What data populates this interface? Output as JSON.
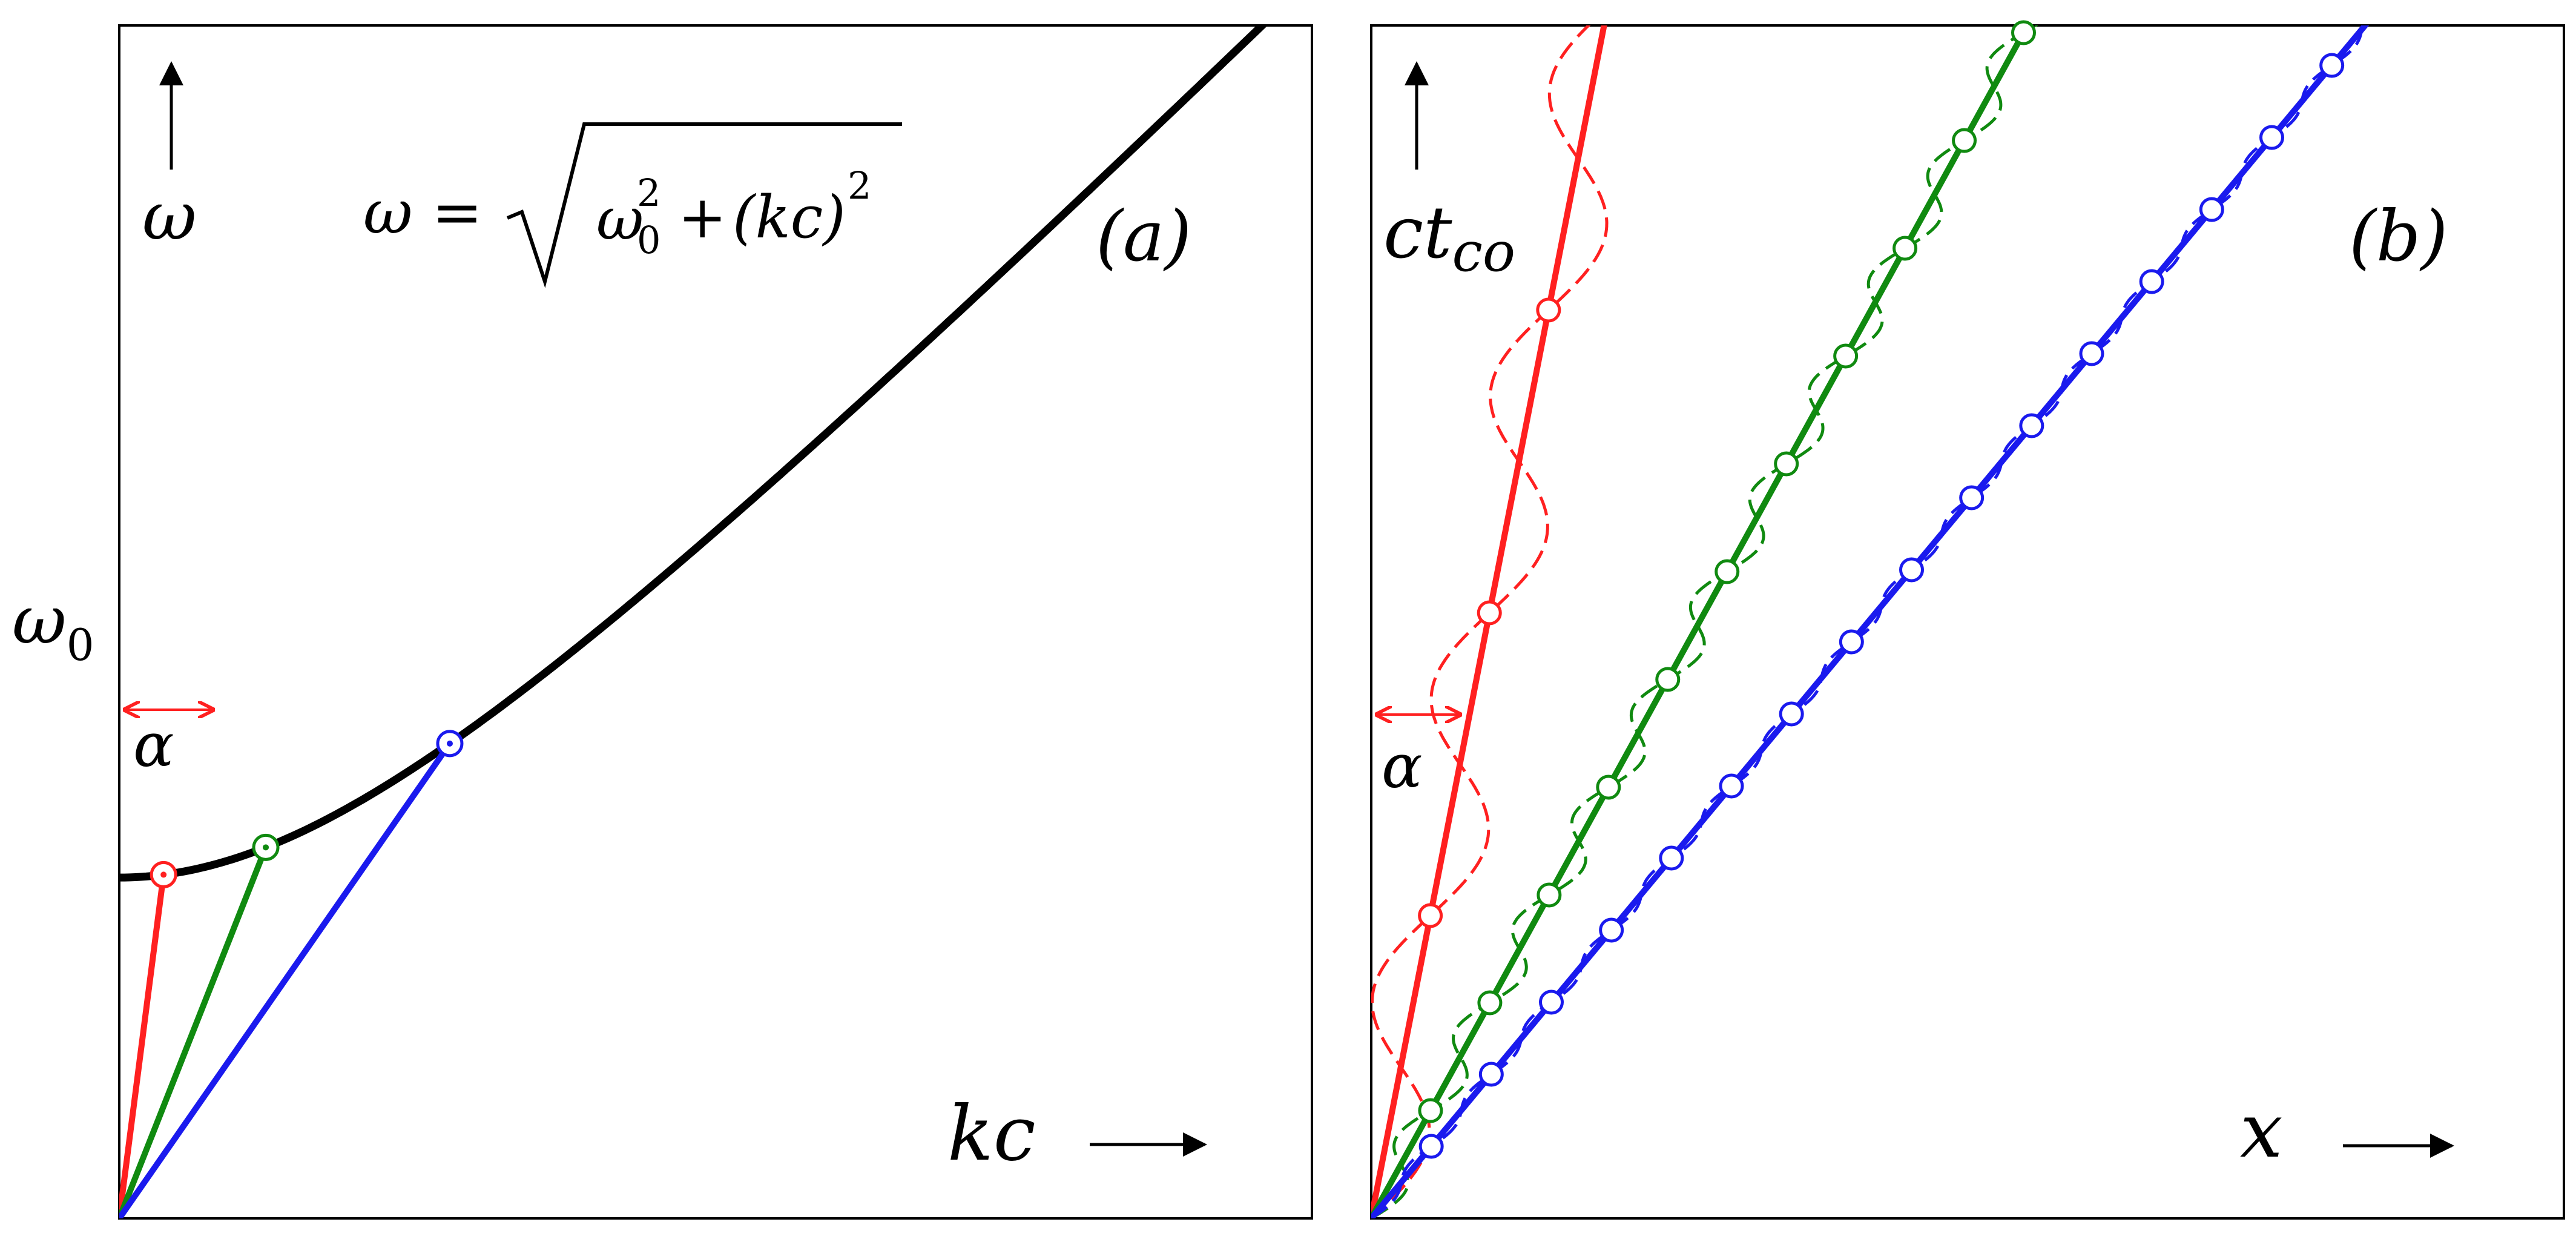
{
  "panels": {
    "a": {
      "tag": "(a)",
      "y_label": "ω",
      "x_label": "kc",
      "omega0_label": "ω",
      "omega0_sub": "0",
      "alpha_label": "α",
      "formula": {
        "lhs": "ω =",
        "term1": "ω",
        "term1_sup": "2",
        "term1_sub": "0",
        "plus": "+",
        "term2": "(kc)",
        "term2_sup": "2"
      },
      "curve_color": "#000000",
      "lines": [
        {
          "name": "red-line",
          "color": "#ff2020",
          "marker": "dot-circle"
        },
        {
          "name": "green-line",
          "color": "#108a10",
          "marker": "dot-circle"
        },
        {
          "name": "blue-line",
          "color": "#1a1aee",
          "marker": "dot-circle"
        }
      ]
    },
    "b": {
      "tag": "(b)",
      "y_label": "ct",
      "y_sub": "co",
      "x_label": "x",
      "alpha_label": "α",
      "series": [
        {
          "name": "red",
          "color": "#ff2020"
        },
        {
          "name": "green",
          "color": "#108a10"
        },
        {
          "name": "blue",
          "color": "#1a1aee"
        }
      ]
    }
  }
}
